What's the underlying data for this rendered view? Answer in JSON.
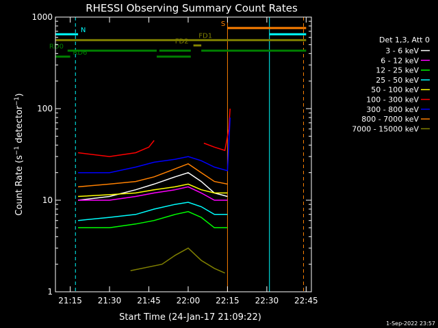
{
  "chart_data": {
    "type": "line",
    "title": "RHESSI Observing Summary Count Rates",
    "xlabel": "Start Time (24-Jan-17 21:09:22)",
    "ylabel": "Count Rate (s⁻¹ detector⁻¹)",
    "ylabel_main": "Count Rate (s",
    "ylabel_sup1": "−1",
    "ylabel_mid": " detector",
    "ylabel_sup2": "−1",
    "ylabel_end": ")",
    "y_scale": "log",
    "xlim": [
      "21:09:22",
      "22:47:00"
    ],
    "ylim": [
      1,
      1000
    ],
    "x_ticks": [
      "21:15",
      "21:30",
      "21:45",
      "22:00",
      "22:15",
      "22:30",
      "22:45"
    ],
    "y_ticks": [
      "1",
      "10",
      "100",
      "1000"
    ],
    "legend_header": "Det 1,3, Att 0",
    "footer_date": "1-Sep-2022 23:57",
    "series": [
      {
        "name": "3 - 6 keV",
        "color": "#ffffff",
        "segments": [
          {
            "x": [
              "21:18",
              "21:30",
              "21:40",
              "21:47",
              "21:55",
              "22:00",
              "22:05",
              "22:10",
              "22:15"
            ],
            "y": [
              10,
              11,
              13,
              15,
              18,
              20,
              16,
              12,
              11
            ]
          }
        ]
      },
      {
        "name": "6 - 12 keV",
        "color": "#ff00ff",
        "segments": [
          {
            "x": [
              "21:18",
              "21:30",
              "21:40",
              "21:47",
              "21:55",
              "22:00",
              "22:05",
              "22:10",
              "22:15"
            ],
            "y": [
              10,
              10,
              11,
              12,
              13,
              14,
              12,
              10,
              10
            ]
          }
        ]
      },
      {
        "name": "12 - 25 keV",
        "color": "#00ff00",
        "segments": [
          {
            "x": [
              "21:18",
              "21:30",
              "21:40",
              "21:47",
              "21:55",
              "22:00",
              "22:05",
              "22:10",
              "22:15"
            ],
            "y": [
              5,
              5,
              5.5,
              6,
              7,
              7.5,
              6.5,
              5,
              5
            ]
          }
        ]
      },
      {
        "name": "25 - 50 keV",
        "color": "#00ffff",
        "segments": [
          {
            "x": [
              "21:18",
              "21:30",
              "21:40",
              "21:47",
              "21:55",
              "22:00",
              "22:05",
              "22:10",
              "22:15"
            ],
            "y": [
              6,
              6.5,
              7,
              8,
              9,
              9.5,
              8.5,
              7,
              7
            ]
          }
        ]
      },
      {
        "name": "50 - 100 keV",
        "color": "#ffff00",
        "segments": [
          {
            "x": [
              "21:18",
              "21:30",
              "21:40",
              "21:47",
              "21:55",
              "22:00",
              "22:05",
              "22:10",
              "22:15"
            ],
            "y": [
              11,
              11.5,
              12,
              13,
              14,
              15,
              13,
              12,
              12
            ]
          }
        ]
      },
      {
        "name": "100 - 300 keV",
        "color": "#ff0000",
        "segments": [
          {
            "x": [
              "21:18",
              "21:30",
              "21:40",
              "21:45",
              "21:47"
            ],
            "y": [
              33,
              30,
              33,
              38,
              45
            ]
          },
          {
            "x": [
              "22:06",
              "22:10",
              "22:14",
              "22:15:30",
              "22:16"
            ],
            "y": [
              42,
              38,
              35,
              60,
              100
            ]
          }
        ]
      },
      {
        "name": "300 - 800 keV",
        "color": "#0000ff",
        "segments": [
          {
            "x": [
              "21:18",
              "21:30",
              "21:40",
              "21:47",
              "21:55",
              "22:00",
              "22:05",
              "22:10",
              "22:15",
              "22:16"
            ],
            "y": [
              20,
              20,
              23,
              26,
              28,
              30,
              27,
              23,
              21,
              80
            ]
          }
        ]
      },
      {
        "name": "800 - 7000 keV",
        "color": "#ff8000",
        "segments": [
          {
            "x": [
              "21:18",
              "21:30",
              "21:40",
              "21:47",
              "21:55",
              "22:00",
              "22:05",
              "22:10",
              "22:15"
            ],
            "y": [
              14,
              15,
              16,
              18,
              22,
              25,
              20,
              16,
              15
            ]
          }
        ]
      },
      {
        "name": "7000 - 15000 keV",
        "color": "#808000",
        "segments": [
          {
            "x": [
              "21:38",
              "21:50",
              "21:55",
              "22:00",
              "22:05",
              "22:10",
              "22:14"
            ],
            "y": [
              1.7,
              2,
              2.5,
              3,
              2.2,
              1.8,
              1.6
            ]
          }
        ]
      }
    ],
    "flag_bars": [
      {
        "label": "N",
        "color": "#00ffff",
        "y": 650,
        "spans": [
          [
            "21:09:22",
            "21:18"
          ],
          [
            "22:31",
            "22:45"
          ]
        ],
        "label_at": "21:19"
      },
      {
        "label": "S",
        "color": "#ff8000",
        "y": 760,
        "spans": [
          [
            "22:15",
            "22:45"
          ]
        ],
        "label_at": "22:12:30"
      },
      {
        "label": "FD1",
        "color": "#808000",
        "y": 560,
        "spans": [
          [
            "21:09:22",
            "22:45"
          ]
        ],
        "label_at": "22:04"
      },
      {
        "label": "FD2",
        "color": "#808000",
        "y": 490,
        "spans": [
          [
            "22:02",
            "22:05"
          ]
        ],
        "label_at": "21:55"
      },
      {
        "label": "RD0",
        "color": "#008000",
        "y": 430,
        "spans": [
          [
            "21:14",
            "21:48"
          ],
          [
            "21:49",
            "22:01"
          ],
          [
            "22:05",
            "22:45"
          ]
        ],
        "label_at": "21:07"
      },
      {
        "label": "RD6",
        "color": "#008000",
        "y": 370,
        "spans": [
          [
            "21:09:22",
            "21:15"
          ],
          [
            "21:48",
            "22:01"
          ]
        ],
        "label_at": "21:16"
      }
    ],
    "vertical_markers": [
      {
        "x": "21:09:22",
        "color": "#00ffff",
        "dash": false
      },
      {
        "x": "21:17",
        "color": "#00ffff",
        "dash": true
      },
      {
        "x": "22:15",
        "color": "#ff8000",
        "dash": false
      },
      {
        "x": "22:31",
        "color": "#00ffff",
        "dash": false
      },
      {
        "x": "22:44",
        "color": "#ff8000",
        "dash": true
      }
    ]
  }
}
